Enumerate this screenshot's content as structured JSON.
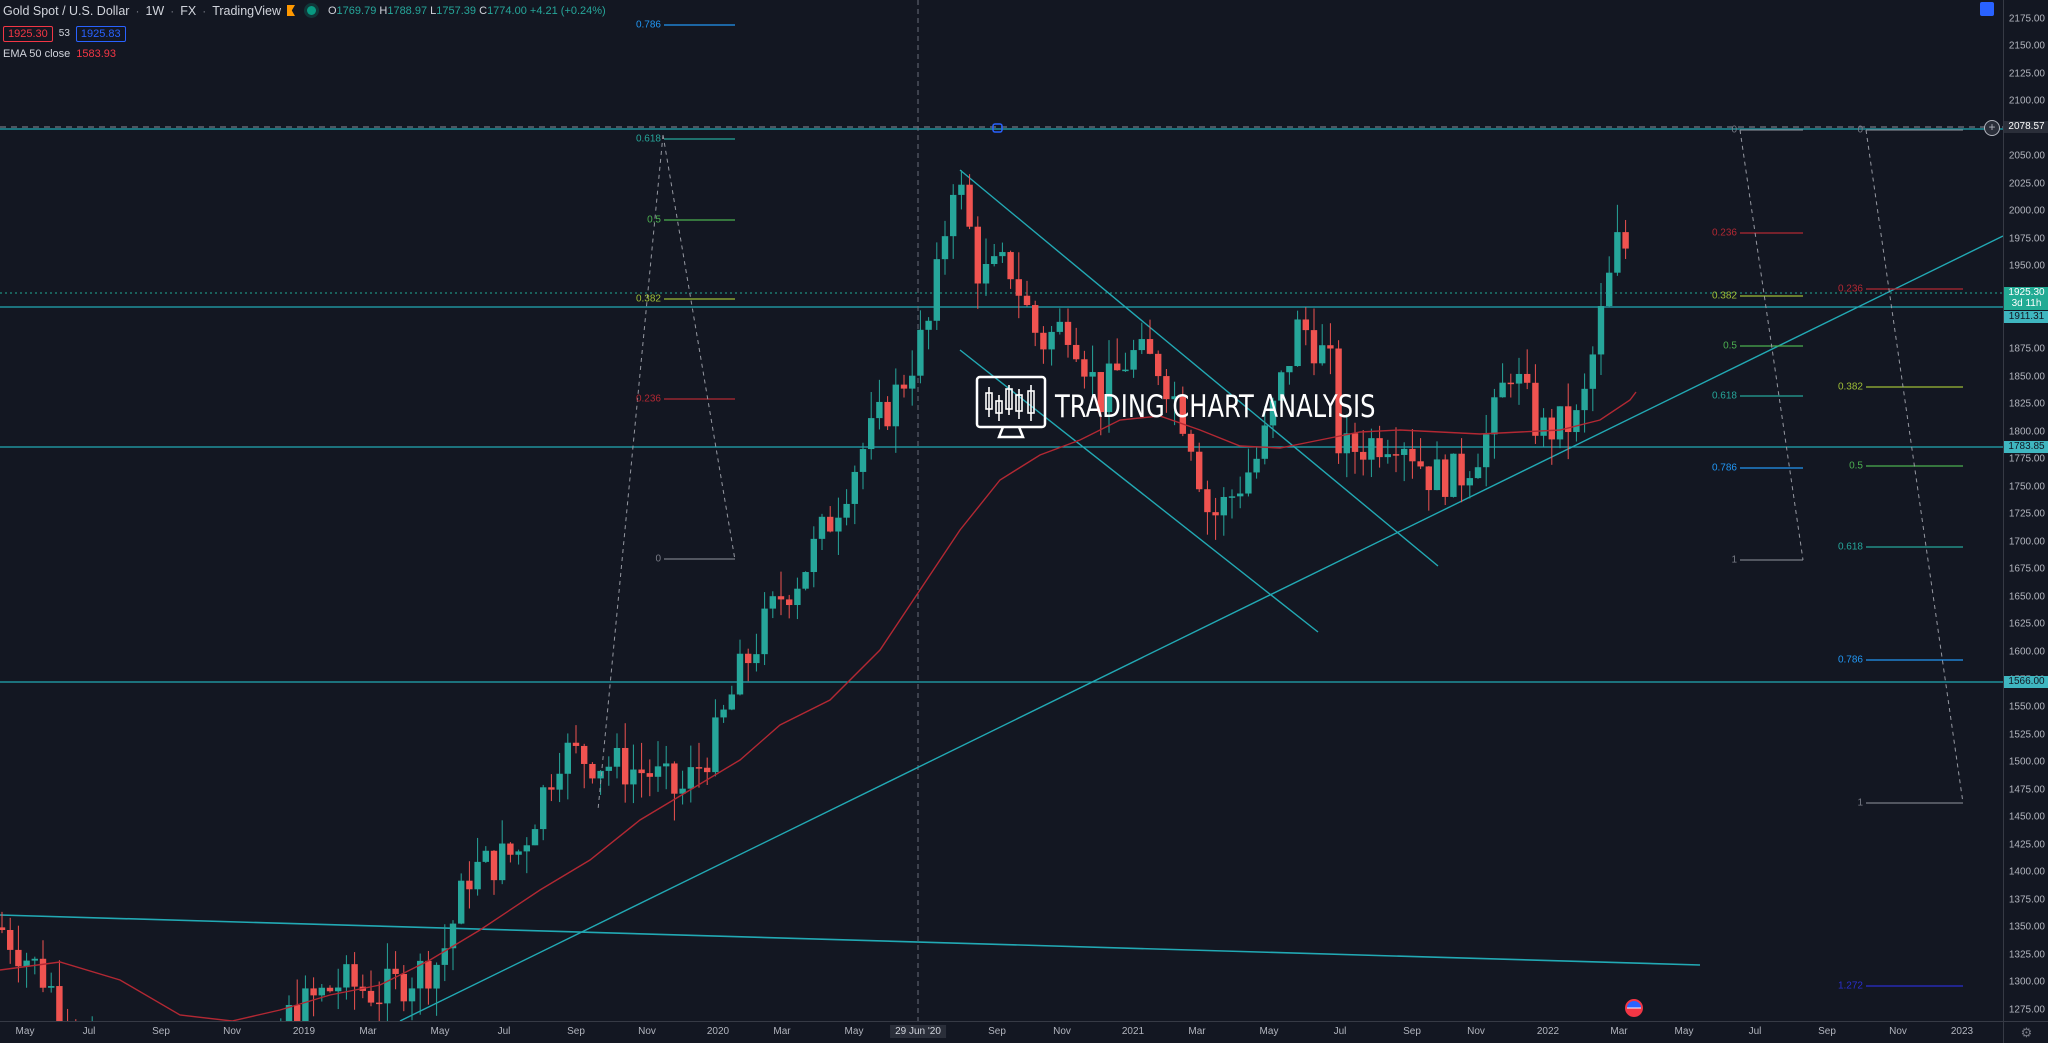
{
  "header": {
    "symbol": "Gold Spot / U.S. Dollar",
    "interval": "1W",
    "exchange": "FX",
    "source": "TradingView",
    "ohlc": {
      "open_key": "O",
      "open": "1769.79",
      "high_key": "H",
      "high": "1788.97",
      "low_key": "L",
      "low": "1757.39",
      "close_key": "C",
      "close": "1774.00",
      "change": "+4.21 (+0.24%)"
    },
    "bid": "1925.30",
    "spread": "53",
    "ask": "1925.83"
  },
  "indicators": [
    {
      "label": "EMA 50 close",
      "value": "1583.93",
      "color": "#f23645"
    }
  ],
  "price_axis": {
    "currency": "USD",
    "ticks": [
      "2175.00",
      "2150.00",
      "2125.00",
      "2100.00",
      "2050.00",
      "2025.00",
      "2000.00",
      "1975.00",
      "1950.00",
      "1875.00",
      "1850.00",
      "1825.00",
      "1800.00",
      "1775.00",
      "1750.00",
      "1725.00",
      "1700.00",
      "1675.00",
      "1650.00",
      "1625.00",
      "1600.00",
      "1575.00",
      "1550.00",
      "1525.00",
      "1500.00",
      "1475.00",
      "1450.00",
      "1425.00",
      "1400.00",
      "1375.00",
      "1350.00",
      "1325.00",
      "1300.00",
      "1275.00"
    ],
    "labels": {
      "high_line": "2078.57",
      "current_price": "1925.30",
      "countdown": "3d 11h",
      "level_1911": "1911.31",
      "level_1783": "1783.85",
      "level_1566": "1566.00"
    }
  },
  "time_axis": {
    "ticks": [
      "May",
      "Jul",
      "Sep",
      "Nov",
      "2019",
      "Mar",
      "May",
      "Jul",
      "Sep",
      "Nov",
      "2020",
      "Mar",
      "May",
      "29 Jun '20",
      "Sep",
      "Nov",
      "2021",
      "Mar",
      "May",
      "Jul",
      "Sep",
      "Nov",
      "2022",
      "Mar",
      "May",
      "Jul",
      "Sep",
      "Nov",
      "2023"
    ],
    "highlighted": "29 Jun '20"
  },
  "fib_left": {
    "levels": [
      {
        "label": "0.786",
        "color": "#2196f3"
      },
      {
        "label": "0.618",
        "color": "#26a69a"
      },
      {
        "label": "0.5",
        "color": "#4caf50"
      },
      {
        "label": "0.382",
        "color": "#9ebd36"
      },
      {
        "label": "0.236",
        "color": "#b22833"
      },
      {
        "label": "0",
        "color": "#787b86"
      }
    ]
  },
  "fib_mid": {
    "levels": [
      {
        "label": "0",
        "color": "#787b86"
      },
      {
        "label": "0.236",
        "color": "#b22833"
      },
      {
        "label": "0.382",
        "color": "#9ebd36"
      },
      {
        "label": "0.5",
        "color": "#4caf50"
      },
      {
        "label": "0.618",
        "color": "#26a69a"
      },
      {
        "label": "0.786",
        "color": "#2196f3"
      },
      {
        "label": "1",
        "color": "#787b86"
      }
    ]
  },
  "fib_right": {
    "levels": [
      {
        "label": "0",
        "color": "#787b86"
      },
      {
        "label": "0.236",
        "color": "#b22833"
      },
      {
        "label": "0.382",
        "color": "#9ebd36"
      },
      {
        "label": "0.5",
        "color": "#4caf50"
      },
      {
        "label": "0.618",
        "color": "#26a69a"
      },
      {
        "label": "0.786",
        "color": "#2196f3"
      },
      {
        "label": "1",
        "color": "#787b86"
      },
      {
        "label": "1.272",
        "color": "#2a2ecd"
      }
    ]
  },
  "watermark": {
    "text": "TRADING CHART ANALYSIS"
  },
  "colors": {
    "background": "#131722",
    "up": "#26a69a",
    "down": "#ef5350",
    "trendline": "#22a9b4",
    "ema": "#b22833",
    "axis_text": "#b2b5be"
  }
}
